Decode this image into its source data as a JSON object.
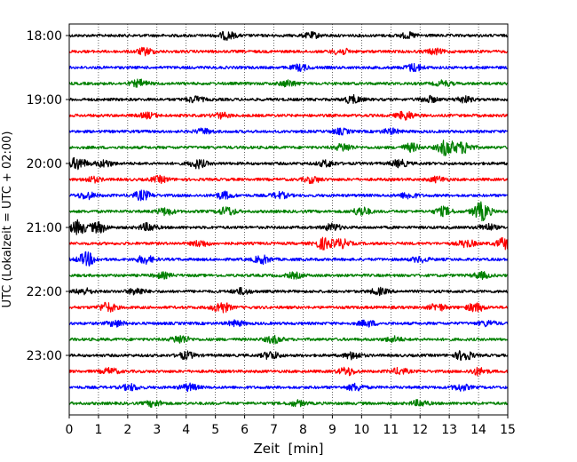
{
  "chart_data": {
    "type": "line",
    "subtype": "helicorder",
    "xlabel": "Zeit  [min]",
    "ylabel": "UTC (Lokalzeit = UTC + 02:00)",
    "xlim": [
      0,
      15
    ],
    "x_ticks": [
      0,
      1,
      2,
      3,
      4,
      5,
      6,
      7,
      8,
      9,
      10,
      11,
      12,
      13,
      14,
      15
    ],
    "x_grid": true,
    "y_tick_labels": [
      "18:00",
      "19:00",
      "20:00",
      "21:00",
      "22:00",
      "23:00"
    ],
    "line_colors": [
      "#000000",
      "#ff0000",
      "#0000ff",
      "#008000"
    ],
    "series": [
      {
        "start": "18:00",
        "events": [
          [
            5.4,
            0.9
          ],
          [
            8.3,
            0.6
          ],
          [
            11.6,
            0.6
          ]
        ]
      },
      {
        "start": "18:15",
        "events": [
          [
            2.6,
            0.8
          ],
          [
            9.3,
            0.7
          ],
          [
            12.5,
            0.6
          ]
        ]
      },
      {
        "start": "18:30",
        "events": [
          [
            7.9,
            0.7
          ],
          [
            11.8,
            0.9
          ]
        ]
      },
      {
        "start": "18:45",
        "events": [
          [
            2.4,
            0.8
          ],
          [
            7.5,
            0.7
          ],
          [
            12.8,
            0.6
          ]
        ]
      },
      {
        "start": "19:00",
        "events": [
          [
            4.3,
            0.7
          ],
          [
            9.7,
            0.9
          ],
          [
            12.3,
            0.7
          ],
          [
            13.5,
            0.7
          ]
        ]
      },
      {
        "start": "19:15",
        "events": [
          [
            2.7,
            0.6
          ],
          [
            5.2,
            0.6
          ],
          [
            11.5,
            1.0
          ]
        ]
      },
      {
        "start": "19:30",
        "events": [
          [
            4.6,
            0.6
          ],
          [
            9.3,
            0.6
          ],
          [
            11.0,
            0.6
          ]
        ]
      },
      {
        "start": "19:45",
        "events": [
          [
            9.4,
            0.9
          ],
          [
            11.7,
            0.9
          ],
          [
            12.9,
            1.9
          ],
          [
            13.5,
            1.3
          ]
        ]
      },
      {
        "start": "20:00",
        "events": [
          [
            0.3,
            1.4
          ],
          [
            1.2,
            0.8
          ],
          [
            4.4,
            1.0
          ],
          [
            8.8,
            0.7
          ],
          [
            11.3,
            0.8
          ]
        ]
      },
      {
        "start": "20:15",
        "events": [
          [
            0.8,
            0.6
          ],
          [
            3.1,
            0.7
          ],
          [
            8.3,
            0.7
          ],
          [
            12.6,
            0.6
          ]
        ]
      },
      {
        "start": "20:30",
        "events": [
          [
            0.6,
            0.8
          ],
          [
            2.5,
            1.1
          ],
          [
            5.3,
            0.8
          ],
          [
            7.2,
            0.7
          ],
          [
            11.6,
            0.7
          ]
        ]
      },
      {
        "start": "20:45",
        "events": [
          [
            3.3,
            0.8
          ],
          [
            5.4,
            1.0
          ],
          [
            10.0,
            1.0
          ],
          [
            12.8,
            1.0
          ],
          [
            14.1,
            2.2
          ]
        ]
      },
      {
        "start": "21:00",
        "events": [
          [
            0.3,
            1.6
          ],
          [
            1.0,
            1.2
          ],
          [
            2.7,
            0.9
          ],
          [
            9.0,
            0.8
          ],
          [
            14.3,
            0.8
          ]
        ]
      },
      {
        "start": "21:15",
        "events": [
          [
            4.5,
            0.7
          ],
          [
            8.7,
            1.3
          ],
          [
            9.3,
            1.0
          ],
          [
            13.6,
            0.8
          ],
          [
            14.9,
            1.3
          ]
        ]
      },
      {
        "start": "21:30",
        "events": [
          [
            0.6,
            1.6
          ],
          [
            2.6,
            0.9
          ],
          [
            6.6,
            0.9
          ],
          [
            12.0,
            0.6
          ]
        ]
      },
      {
        "start": "21:45",
        "events": [
          [
            3.2,
            0.6
          ],
          [
            7.7,
            0.6
          ],
          [
            14.1,
            0.7
          ]
        ]
      },
      {
        "start": "22:00",
        "events": [
          [
            0.5,
            0.7
          ],
          [
            2.3,
            0.8
          ],
          [
            5.9,
            0.7
          ],
          [
            10.6,
            0.7
          ]
        ]
      },
      {
        "start": "22:15",
        "events": [
          [
            1.3,
            1.1
          ],
          [
            5.2,
            1.3
          ],
          [
            12.6,
            0.8
          ],
          [
            13.9,
            1.0
          ]
        ]
      },
      {
        "start": "22:30",
        "events": [
          [
            1.6,
            0.7
          ],
          [
            5.7,
            0.6
          ],
          [
            10.2,
            0.7
          ],
          [
            14.3,
            0.6
          ]
        ]
      },
      {
        "start": "22:45",
        "events": [
          [
            3.8,
            1.0
          ],
          [
            7.0,
            0.8
          ],
          [
            11.1,
            0.6
          ]
        ]
      },
      {
        "start": "23:00",
        "events": [
          [
            4.0,
            0.8
          ],
          [
            6.9,
            0.9
          ],
          [
            9.7,
            0.8
          ],
          [
            13.5,
            1.2
          ]
        ]
      },
      {
        "start": "23:15",
        "events": [
          [
            1.4,
            0.7
          ],
          [
            9.5,
            0.9
          ],
          [
            11.3,
            0.7
          ],
          [
            14.0,
            0.8
          ]
        ]
      },
      {
        "start": "23:30",
        "events": [
          [
            2.1,
            0.7
          ],
          [
            4.1,
            0.8
          ],
          [
            9.8,
            0.8
          ],
          [
            13.4,
            0.7
          ]
        ]
      },
      {
        "start": "23:45",
        "events": [
          [
            2.9,
            0.7
          ],
          [
            7.8,
            0.6
          ],
          [
            12.0,
            0.7
          ]
        ]
      }
    ]
  }
}
